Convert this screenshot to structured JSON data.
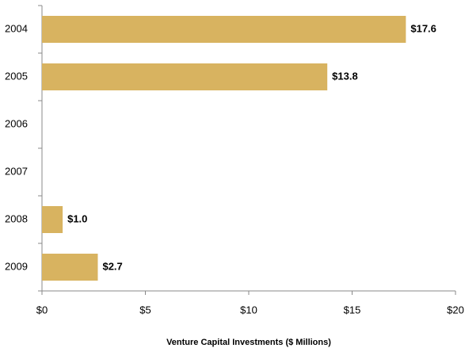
{
  "chart_data": {
    "type": "bar",
    "orientation": "horizontal",
    "x_label": "Venture Capital  Investments ($ Millions)",
    "categories": [
      "2004",
      "2005",
      "2006",
      "2007",
      "2008",
      "2009"
    ],
    "values": [
      17.6,
      13.8,
      null,
      null,
      1.0,
      2.7
    ],
    "value_labels": [
      "$17.6",
      "$13.8",
      null,
      null,
      "$1.0",
      "$2.7"
    ],
    "color": "#d8b360",
    "xlim": [
      0,
      20
    ],
    "xticks": [
      {
        "value": 0,
        "label": "$0"
      },
      {
        "value": 5,
        "label": "$5"
      },
      {
        "value": 10,
        "label": "$10"
      },
      {
        "value": 15,
        "label": "$15"
      },
      {
        "value": 20,
        "label": "$20"
      }
    ],
    "grid": false
  }
}
